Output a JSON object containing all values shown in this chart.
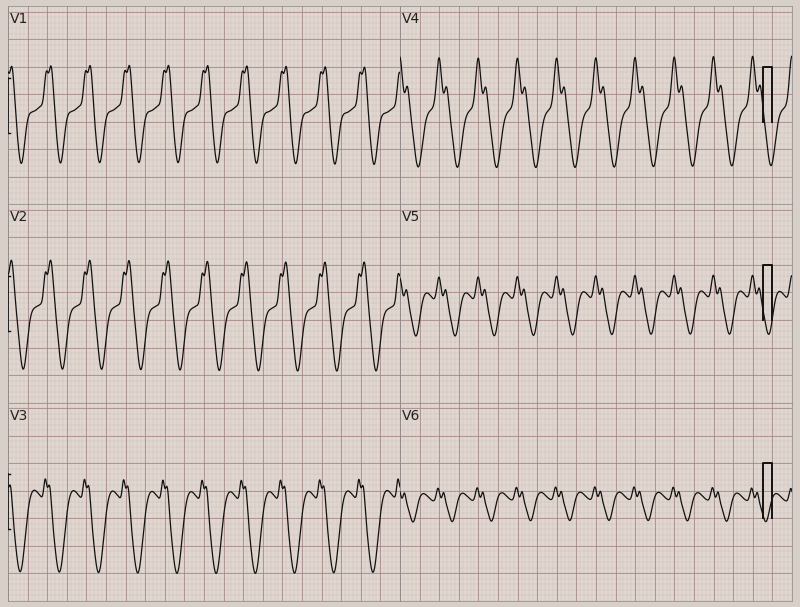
{
  "background_color": "#e8e8e8",
  "grid_minor_color": "#c8b8b8",
  "grid_major_color": "#b09090",
  "line_color": "#111111",
  "leads": [
    "V1",
    "V2",
    "V3",
    "V4",
    "V5",
    "V6"
  ],
  "figsize": [
    8.0,
    6.07
  ],
  "dpi": 100,
  "heart_rate": 150,
  "duration": 4.0,
  "fs": 1000
}
